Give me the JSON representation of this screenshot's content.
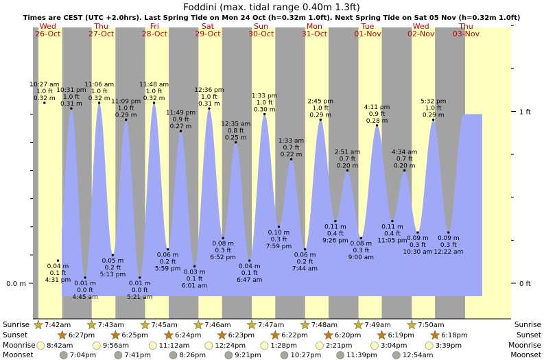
{
  "title": "Foddini (max. tidal range 0.40m 1.3ft)",
  "subtitle": "Times are CEST (UTC +2.0hrs). Last Spring Tide on Mon 24 Oct (h=0.32m 1.0ft). Next Spring Tide on Sat 05 Nov (h=0.32m 1.0ft)",
  "colors": {
    "night": "#a3a3a3",
    "day": "#ffffc0",
    "tide_fill": "#a0a8f8",
    "day_label": "#cc0000",
    "sun_star": "#c8b43c",
    "set_star": "#c87820",
    "moonrise": "#ffffc0",
    "moonset": "#a8a89a"
  },
  "chart_data": {
    "type": "area",
    "y_axis_left": {
      "label": "0.0 m"
    },
    "y_axis_right": {
      "labels": [
        "0 ft",
        "1 ft"
      ],
      "values_ft": [
        0,
        1
      ]
    },
    "days": [
      {
        "dow": "Wed",
        "date": "26-Oct"
      },
      {
        "dow": "Thu",
        "date": "27-Oct"
      },
      {
        "dow": "Fri",
        "date": "28-Oct"
      },
      {
        "dow": "Sat",
        "date": "29-Oct"
      },
      {
        "dow": "Sun",
        "date": "30-Oct"
      },
      {
        "dow": "Mon",
        "date": "31-Oct"
      },
      {
        "dow": "Tue",
        "date": "01-Nov"
      },
      {
        "dow": "Wed",
        "date": "02-Nov"
      },
      {
        "dow": "Thu",
        "date": "03-Nov"
      }
    ],
    "tides": [
      {
        "day": 0,
        "time": "10:27 am",
        "h": 0.32,
        "ft": "1.0 ft",
        "m": "0.32 m",
        "type": "high"
      },
      {
        "day": 0,
        "time": "4:31 pm",
        "h": 0.04,
        "ft": "0.1 ft",
        "m": "0.04 m",
        "type": "low"
      },
      {
        "day": 0,
        "time": "10:31 pm",
        "h": 0.31,
        "ft": "1.0 ft",
        "m": "0.31 m",
        "type": "high"
      },
      {
        "day": 1,
        "time": "4:45 am",
        "h": 0.01,
        "ft": "0.0 ft",
        "m": "0.01 m",
        "type": "low"
      },
      {
        "day": 1,
        "time": "11:06 am",
        "h": 0.32,
        "ft": "1.0 ft",
        "m": "0.32 m",
        "type": "high"
      },
      {
        "day": 1,
        "time": "5:13 pm",
        "h": 0.05,
        "ft": "0.2 ft",
        "m": "0.05 m",
        "type": "low"
      },
      {
        "day": 1,
        "time": "11:09 pm",
        "h": 0.29,
        "ft": "1.0 ft",
        "m": "0.29 m",
        "type": "high"
      },
      {
        "day": 2,
        "time": "5:21 am",
        "h": 0.01,
        "ft": "0.0 ft",
        "m": "0.01 m",
        "type": "low"
      },
      {
        "day": 2,
        "time": "11:48 am",
        "h": 0.32,
        "ft": "1.0 ft",
        "m": "0.32 m",
        "type": "high"
      },
      {
        "day": 2,
        "time": "5:59 pm",
        "h": 0.06,
        "ft": "0.2 ft",
        "m": "0.06 m",
        "type": "low"
      },
      {
        "day": 2,
        "time": "11:49 pm",
        "h": 0.27,
        "ft": "0.9 ft",
        "m": "0.27 m",
        "type": "high"
      },
      {
        "day": 3,
        "time": "6:01 am",
        "h": 0.03,
        "ft": "0.1 ft",
        "m": "0.03 m",
        "type": "low"
      },
      {
        "day": 3,
        "time": "12:36 pm",
        "h": 0.31,
        "ft": "1.0 ft",
        "m": "0.31 m",
        "type": "high"
      },
      {
        "day": 3,
        "time": "6:52 pm",
        "h": 0.08,
        "ft": "0.3 ft",
        "m": "0.08 m",
        "type": "low"
      },
      {
        "day": 4,
        "time": "12:35 am",
        "h": 0.25,
        "ft": "0.8 ft",
        "m": "0.25 m",
        "type": "high"
      },
      {
        "day": 4,
        "time": "6:47 am",
        "h": 0.04,
        "ft": "0.1 ft",
        "m": "0.04 m",
        "type": "low"
      },
      {
        "day": 4,
        "time": "1:33 pm",
        "h": 0.3,
        "ft": "1.0 ft",
        "m": "0.30 m",
        "type": "high"
      },
      {
        "day": 4,
        "time": "7:59 pm",
        "h": 0.1,
        "ft": "0.3 ft",
        "m": "0.10 m",
        "type": "low"
      },
      {
        "day": 5,
        "time": "1:33 am",
        "h": 0.22,
        "ft": "0.7 ft",
        "m": "0.22 m",
        "type": "high"
      },
      {
        "day": 5,
        "time": "7:44 am",
        "h": 0.06,
        "ft": "0.2 ft",
        "m": "0.06 m",
        "type": "low"
      },
      {
        "day": 5,
        "time": "2:45 pm",
        "h": 0.29,
        "ft": "1.0 ft",
        "m": "0.29 m",
        "type": "high"
      },
      {
        "day": 5,
        "time": "9:26 pm",
        "h": 0.11,
        "ft": "0.4 ft",
        "m": "0.11 m",
        "type": "low"
      },
      {
        "day": 6,
        "time": "2:51 am",
        "h": 0.2,
        "ft": "0.7 ft",
        "m": "0.20 m",
        "type": "high"
      },
      {
        "day": 6,
        "time": "9:00 am",
        "h": 0.08,
        "ft": "0.3 ft",
        "m": "0.08 m",
        "type": "low"
      },
      {
        "day": 6,
        "time": "4:11 pm",
        "h": 0.28,
        "ft": "0.9 ft",
        "m": "0.28 m",
        "type": "high"
      },
      {
        "day": 6,
        "time": "11:05 pm",
        "h": 0.11,
        "ft": "0.4 ft",
        "m": "0.11 m",
        "type": "low"
      },
      {
        "day": 7,
        "time": "4:34 am",
        "h": 0.2,
        "ft": "0.7 ft",
        "m": "0.20 m",
        "type": "high"
      },
      {
        "day": 7,
        "time": "10:30 am",
        "h": 0.09,
        "ft": "0.3 ft",
        "m": "0.09 m",
        "type": "low"
      },
      {
        "day": 7,
        "time": "5:32 pm",
        "h": 0.29,
        "ft": "1.0 ft",
        "m": "0.29 m",
        "type": "high"
      },
      {
        "day": 8,
        "time": "12:22 am",
        "h": 0.09,
        "ft": "0.3 ft",
        "m": "0.09 m",
        "type": "low"
      }
    ],
    "daylight": [
      {
        "day": 0,
        "sunrise": "7:42am",
        "sunset": "6:27pm",
        "moonrise": "8:42am",
        "moonset": "7:04pm"
      },
      {
        "day": 1,
        "sunrise": "7:43am",
        "sunset": "6:25pm",
        "moonrise": "9:56am",
        "moonset": "7:41pm"
      },
      {
        "day": 2,
        "sunrise": "7:45am",
        "sunset": "6:24pm",
        "moonrise": "11:12am",
        "moonset": "8:26pm"
      },
      {
        "day": 3,
        "sunrise": "7:46am",
        "sunset": "6:23pm",
        "moonrise": "12:24pm",
        "moonset": "9:21pm"
      },
      {
        "day": 4,
        "sunrise": "7:47am",
        "sunset": "6:22pm",
        "moonrise": "1:28pm",
        "moonset": "10:27pm"
      },
      {
        "day": 5,
        "sunrise": "7:48am",
        "sunset": "6:20pm",
        "moonrise": "2:21pm",
        "moonset": "11:39pm"
      },
      {
        "day": 6,
        "sunrise": "7:49am",
        "sunset": "6:19pm",
        "moonrise": "3:04pm",
        "moonset": ""
      },
      {
        "day": 7,
        "sunrise": "7:50am",
        "sunset": "6:18pm",
        "moonrise": "3:39pm",
        "moonset": "12:54am"
      }
    ],
    "row_labels": [
      "Sunrise",
      "Sunset",
      "Moonrise",
      "Moonset"
    ]
  }
}
